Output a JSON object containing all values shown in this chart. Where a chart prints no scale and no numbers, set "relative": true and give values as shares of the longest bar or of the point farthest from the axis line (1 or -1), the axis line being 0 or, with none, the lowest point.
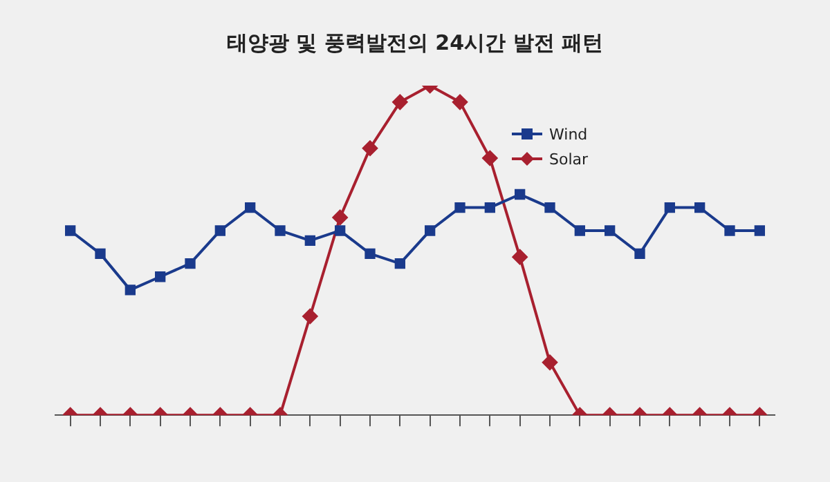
{
  "chart_data": {
    "type": "line",
    "title": "태양광 및 풍력발전의 24시간 발전 패턴",
    "relative": true,
    "legend": "top right",
    "line_style": "solid",
    "categories": [
      null,
      null,
      null,
      null,
      null,
      null,
      null,
      null,
      null,
      null,
      null,
      null,
      null,
      null,
      null,
      null,
      null,
      null,
      null,
      null,
      null,
      null,
      null,
      null
    ],
    "series": [
      {
        "name": "Wind",
        "color": "#1a3a8c",
        "marker": "square",
        "values": [
          0.56,
          0.49,
          0.38,
          0.42,
          0.46,
          0.56,
          0.63,
          0.56,
          0.53,
          0.56,
          0.49,
          0.46,
          0.56,
          0.63,
          0.63,
          0.67,
          0.63,
          0.56,
          0.56,
          0.49,
          0.63,
          0.63,
          0.56,
          0.56
        ]
      },
      {
        "name": "Solar",
        "color": "#a8202f",
        "marker": "diamond",
        "values": [
          0,
          0,
          0,
          0,
          0,
          0,
          0,
          0,
          0.3,
          0.6,
          0.81,
          0.95,
          1,
          0.95,
          0.78,
          0.48,
          0.16,
          0,
          0,
          0,
          0,
          0,
          0,
          0
        ]
      }
    ]
  }
}
